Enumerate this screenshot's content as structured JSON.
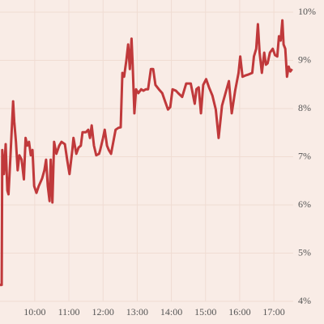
{
  "chart_data": {
    "type": "line",
    "x": [
      539,
      542,
      543,
      546,
      549,
      552,
      554,
      557,
      562,
      564,
      567,
      570,
      573,
      577,
      581,
      584,
      587,
      590,
      593,
      596,
      599,
      603,
      607,
      613,
      617,
      620,
      623,
      626,
      628,
      631,
      634,
      638,
      643,
      647,
      653,
      657,
      661,
      666,
      668,
      673,
      677,
      681,
      684,
      690,
      694,
      697,
      700,
      704,
      708,
      713,
      715,
      720,
      723,
      727,
      730,
      734,
      738,
      742,
      747,
      751,
      754,
      757,
      761,
      764,
      767,
      770,
      772,
      775,
      778,
      782,
      787,
      791,
      795,
      799,
      804,
      808,
      812,
      818,
      824,
      829,
      834,
      838,
      842,
      848,
      852,
      859,
      866,
      874,
      881,
      884,
      888,
      892,
      896,
      901,
      906,
      912,
      918,
      923,
      929,
      935,
      941,
      946,
      952,
      958,
      961,
      965,
      971,
      976,
      982,
      985,
      989,
      992,
      995,
      999,
      1003,
      1006,
      1009,
      1013,
      1018,
      1022,
      1026,
      1029,
      1032,
      1035,
      1037,
      1040,
      1043,
      1046,
      1049,
      1052
    ],
    "series": [
      {
        "color": "#c0393b",
        "values": [
          4.34,
          4.34,
          7.14,
          6.64,
          7.26,
          6.3,
          6.22,
          6.94,
          8.15,
          7.73,
          7.31,
          6.72,
          7.03,
          6.94,
          6.53,
          7.39,
          7.23,
          7.31,
          7.03,
          7.14,
          6.39,
          6.25,
          6.39,
          6.55,
          6.72,
          6.94,
          6.39,
          6.08,
          6.94,
          6.05,
          7.31,
          7.06,
          7.23,
          7.31,
          7.26,
          6.94,
          6.64,
          7.14,
          7.39,
          7.06,
          7.19,
          7.23,
          7.51,
          7.51,
          7.56,
          7.39,
          7.65,
          7.23,
          7.03,
          7.06,
          7.14,
          7.39,
          7.56,
          7.23,
          7.14,
          7.06,
          7.31,
          7.56,
          7.6,
          7.61,
          8.74,
          8.66,
          9.0,
          9.33,
          8.82,
          9.45,
          8.91,
          7.9,
          8.4,
          8.32,
          8.4,
          8.37,
          8.4,
          8.4,
          8.82,
          8.82,
          8.49,
          8.4,
          8.32,
          8.15,
          7.98,
          8.03,
          8.4,
          8.37,
          8.32,
          8.24,
          8.52,
          8.52,
          8.1,
          8.4,
          8.44,
          7.9,
          8.49,
          8.61,
          8.44,
          8.27,
          7.98,
          7.39,
          8.06,
          8.32,
          8.57,
          7.9,
          8.37,
          8.74,
          9.08,
          8.66,
          8.69,
          8.71,
          8.74,
          9.08,
          9.24,
          9.75,
          9.16,
          8.74,
          9.16,
          8.91,
          8.94,
          9.16,
          9.24,
          9.11,
          9.08,
          9.5,
          9.41,
          9.83,
          9.33,
          9.24,
          8.66,
          8.87,
          8.77,
          8.82
        ]
      }
    ],
    "xlim": [
      539,
      1054
    ],
    "xticks": [
      {
        "value": 600,
        "label": "10:00"
      },
      {
        "value": 660,
        "label": "11:00"
      },
      {
        "value": 720,
        "label": "12:00"
      },
      {
        "value": 780,
        "label": "13:00"
      },
      {
        "value": 840,
        "label": "14:00"
      },
      {
        "value": 900,
        "label": "15:00"
      },
      {
        "value": 960,
        "label": "16:00"
      },
      {
        "value": 1020,
        "label": "17:00"
      }
    ],
    "ylim": [
      4,
      10
    ],
    "yticks": [
      {
        "value": 4,
        "label": "4%"
      },
      {
        "value": 5,
        "label": "5%"
      },
      {
        "value": 6,
        "label": "6%"
      },
      {
        "value": 7,
        "label": "7%"
      },
      {
        "value": 8,
        "label": "8%"
      },
      {
        "value": 9,
        "label": "9%"
      },
      {
        "value": 10,
        "label": "10%"
      }
    ],
    "grid": true
  }
}
